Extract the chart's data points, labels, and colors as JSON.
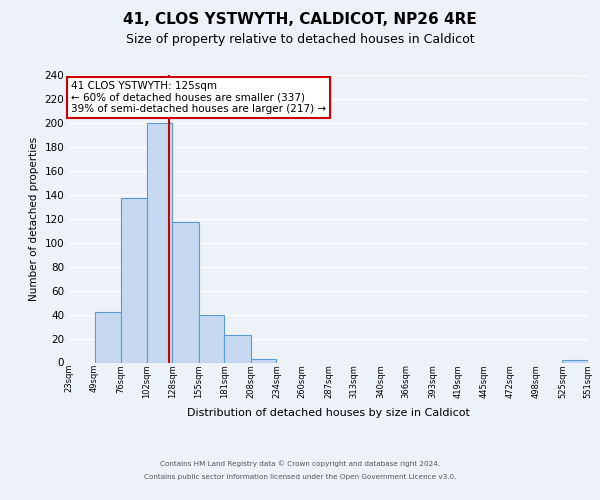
{
  "title": "41, CLOS YSTWYTH, CALDICOT, NP26 4RE",
  "subtitle": "Size of property relative to detached houses in Caldicot",
  "xlabel": "Distribution of detached houses by size in Caldicot",
  "ylabel": "Number of detached properties",
  "bin_edges": [
    23,
    49,
    76,
    102,
    128,
    155,
    181,
    208,
    234,
    260,
    287,
    313,
    340,
    366,
    393,
    419,
    445,
    472,
    498,
    525,
    551
  ],
  "bar_heights": [
    0,
    42,
    137,
    200,
    117,
    40,
    23,
    3,
    0,
    0,
    0,
    0,
    0,
    0,
    0,
    0,
    0,
    0,
    0,
    2
  ],
  "bar_color": "#c6d9f0",
  "bar_edgecolor": "#5b9bd5",
  "property_size": 125,
  "vline_color": "#cc0000",
  "ylim": [
    0,
    240
  ],
  "yticks": [
    0,
    20,
    40,
    60,
    80,
    100,
    120,
    140,
    160,
    180,
    200,
    220,
    240
  ],
  "annotation_text": "41 CLOS YSTWYTH: 125sqm\n← 60% of detached houses are smaller (337)\n39% of semi-detached houses are larger (217) →",
  "annotation_box_edgecolor": "#cc0000",
  "annotation_fontsize": 7.5,
  "title_fontsize": 11,
  "subtitle_fontsize": 9,
  "xtick_fontsize": 6.0,
  "ytick_fontsize": 7.5,
  "ylabel_fontsize": 7.5,
  "xlabel_fontsize": 8,
  "footer_line1": "Contains HM Land Registry data © Crown copyright and database right 2024.",
  "footer_line2": "Contains public sector information licensed under the Open Government Licence v3.0.",
  "background_color": "#edf2f9",
  "grid_color": "#ffffff"
}
